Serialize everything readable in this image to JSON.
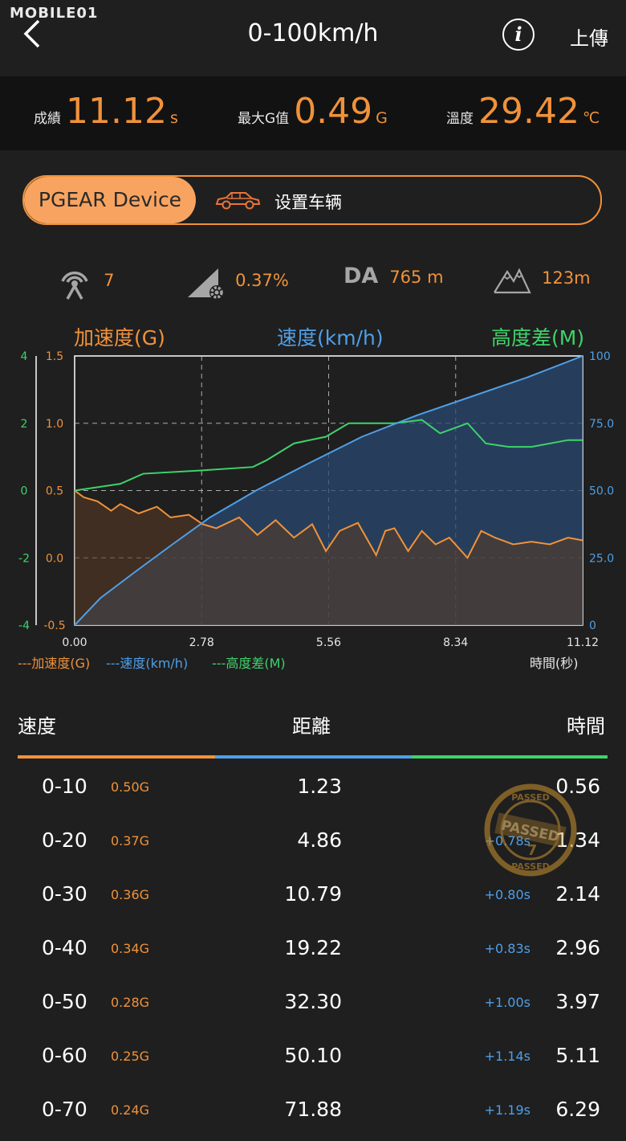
{
  "watermark": "MOBILE01",
  "header": {
    "title": "0-100km/h",
    "info_icon": "info-icon",
    "upload_label": "上傳"
  },
  "stats": {
    "score_label": "成績",
    "score_value": "11.12",
    "score_unit": "s",
    "maxg_label": "最大G值",
    "maxg_value": "0.49",
    "maxg_unit": "G",
    "temp_label": "溫度",
    "temp_value": "29.42",
    "temp_unit": "℃"
  },
  "device": {
    "active_label": "PGEAR Device",
    "vehicle_label": "设置车辆"
  },
  "sensors": {
    "satellites": "7",
    "slope": "0.37%",
    "da_label": "DA",
    "da_value": "765 m",
    "elevation": "123m"
  },
  "colors": {
    "accent": "#f0923a",
    "speed": "#4f9fe8",
    "altitude": "#3ed36b",
    "background": "#1f1f1f"
  },
  "chart_data": {
    "type": "line",
    "accel_label": "加速度(G)",
    "speed_label": "速度(km/h)",
    "alt_label": "高度差(M)",
    "xlabel": "時間(秒)",
    "x_ticks": [
      "0.00",
      "2.78",
      "5.56",
      "8.34",
      "11.12"
    ],
    "xlim": [
      0,
      11.12
    ],
    "accel_ticks": [
      "1.5",
      "1.0",
      "0.5",
      "0.0",
      "-0.5"
    ],
    "accel_ylim": [
      -0.5,
      1.5
    ],
    "alt_ticks": [
      "4",
      "2",
      "0",
      "-2",
      "-4"
    ],
    "alt_ylim": [
      -4,
      4
    ],
    "speed_ticks": [
      "100",
      "75.0",
      "50.0",
      "25.0",
      "0"
    ],
    "speed_ylim": [
      0,
      100
    ],
    "legend": [
      "---加速度(G)",
      "---速度(km/h)",
      "---高度差(M)"
    ],
    "grid": true,
    "series": [
      {
        "name": "速度(km/h)",
        "x": [
          0,
          0.56,
          1.34,
          2.14,
          2.96,
          3.97,
          5.11,
          6.29,
          7.5,
          8.7,
          9.9,
          11.12
        ],
        "values": [
          0,
          10,
          20,
          30,
          40,
          50,
          60,
          70,
          78,
          85,
          92,
          100
        ]
      },
      {
        "name": "加速度(G)",
        "x": [
          0,
          0.2,
          0.5,
          0.8,
          1.0,
          1.4,
          1.8,
          2.1,
          2.5,
          2.8,
          3.1,
          3.6,
          4.0,
          4.4,
          4.8,
          5.2,
          5.5,
          5.8,
          6.2,
          6.6,
          6.8,
          7.0,
          7.3,
          7.6,
          7.9,
          8.2,
          8.6,
          8.9,
          9.2,
          9.6,
          10.0,
          10.4,
          10.8,
          11.12
        ],
        "values": [
          0.5,
          0.45,
          0.42,
          0.35,
          0.4,
          0.33,
          0.38,
          0.3,
          0.32,
          0.25,
          0.22,
          0.3,
          0.17,
          0.28,
          0.15,
          0.25,
          0.05,
          0.2,
          0.26,
          0.02,
          0.2,
          0.22,
          0.05,
          0.2,
          0.1,
          0.15,
          0.0,
          0.2,
          0.15,
          0.1,
          0.12,
          0.1,
          0.15,
          0.13
        ]
      },
      {
        "name": "高度差(M)",
        "x": [
          0,
          1.0,
          1.5,
          2.8,
          3.9,
          4.2,
          4.8,
          5.5,
          6.0,
          7.0,
          7.6,
          8.0,
          8.6,
          9.0,
          9.5,
          10.0,
          10.8,
          11.12
        ],
        "values": [
          0,
          0.2,
          0.5,
          0.6,
          0.7,
          0.9,
          1.4,
          1.6,
          2.0,
          2.0,
          2.1,
          1.7,
          2.0,
          1.4,
          1.3,
          1.3,
          1.5,
          1.5
        ]
      }
    ]
  },
  "table": {
    "col_speed": "速度",
    "col_distance": "距離",
    "col_time": "時間",
    "rows": [
      {
        "speed": "0-10",
        "g": "0.50G",
        "distance": "1.23",
        "delta": "",
        "time": "0.56"
      },
      {
        "speed": "0-20",
        "g": "0.37G",
        "distance": "4.86",
        "delta": "+0.78s",
        "time": "1.34"
      },
      {
        "speed": "0-30",
        "g": "0.36G",
        "distance": "10.79",
        "delta": "+0.80s",
        "time": "2.14"
      },
      {
        "speed": "0-40",
        "g": "0.34G",
        "distance": "19.22",
        "delta": "+0.83s",
        "time": "2.96"
      },
      {
        "speed": "0-50",
        "g": "0.28G",
        "distance": "32.30",
        "delta": "+1.00s",
        "time": "3.97"
      },
      {
        "speed": "0-60",
        "g": "0.25G",
        "distance": "50.10",
        "delta": "+1.14s",
        "time": "5.11"
      },
      {
        "speed": "0-70",
        "g": "0.24G",
        "distance": "71.88",
        "delta": "+1.19s",
        "time": "6.29"
      }
    ]
  },
  "stamp": {
    "text": "PASSED",
    "number": "7"
  }
}
